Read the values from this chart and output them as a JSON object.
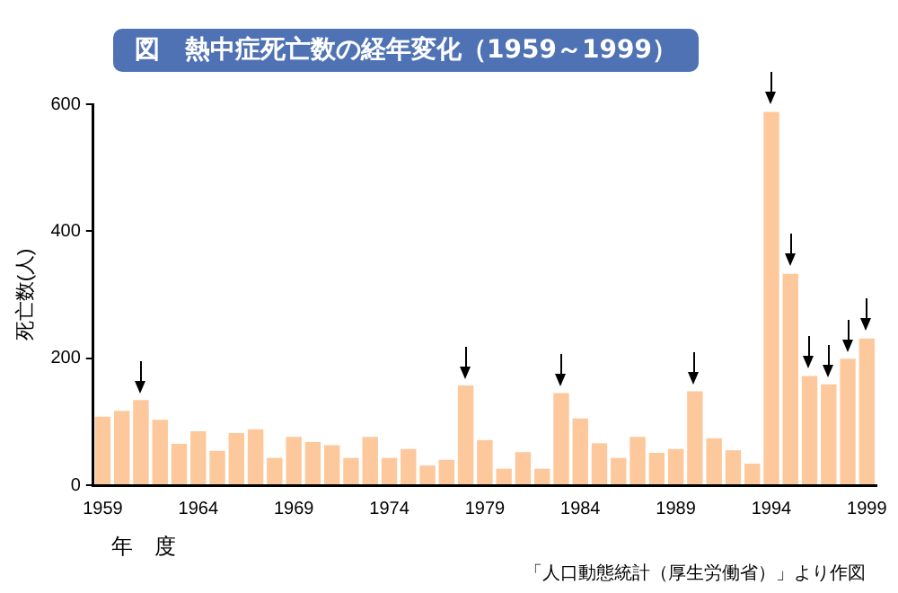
{
  "chart_data": {
    "type": "bar",
    "title": "図　熱中症死亡数の経年変化（1959～1999）",
    "xlabel": "年　度",
    "ylabel": "死亡数(人)",
    "categories": [
      "1959",
      null,
      null,
      null,
      null,
      "1964",
      null,
      null,
      null,
      null,
      "1969",
      null,
      null,
      null,
      null,
      "1974",
      null,
      null,
      null,
      null,
      "1979",
      null,
      null,
      null,
      null,
      "1984",
      null,
      null,
      null,
      null,
      "1989",
      null,
      null,
      null,
      null,
      "1994",
      null,
      null,
      null,
      null,
      "1999"
    ],
    "values": [
      108,
      117,
      134,
      103,
      65,
      85,
      54,
      82,
      88,
      43,
      76,
      68,
      63,
      43,
      76,
      43,
      57,
      31,
      40,
      157,
      71,
      26,
      52,
      26,
      145,
      105,
      66,
      43,
      76,
      51,
      57,
      148,
      74,
      55,
      34,
      588,
      333,
      172,
      159,
      199,
      231
    ],
    "color": "#fdc99c",
    "ylim": [
      0,
      600
    ],
    "yticks": [
      0,
      200,
      400,
      600
    ],
    "grid": false,
    "legend": false,
    "annotations": [
      "「人口動態統計（厚生労働省）」より作図"
    ]
  }
}
